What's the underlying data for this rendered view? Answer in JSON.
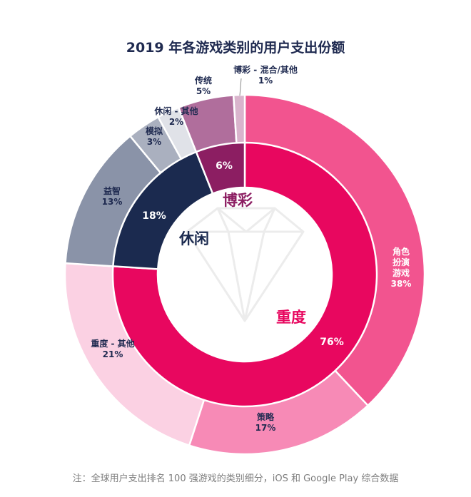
{
  "chart_data": {
    "type": "pie",
    "variant": "nested-donut",
    "title": "2019 年各游戏类别的用户支出份额",
    "footnote": "注：全球用户支出排名 100 强游戏的类别细分，iOS 和 Google Play 综合数据",
    "inner_ring": [
      {
        "name": "重度",
        "value": 76,
        "label": "76%",
        "color": "#e8075f"
      },
      {
        "name": "休闲",
        "value": 18,
        "label": "18%",
        "color": "#1b2a4f"
      },
      {
        "name": "博彩",
        "value": 6,
        "label": "6%",
        "color": "#8c1e62"
      }
    ],
    "outer_ring": [
      {
        "name": "角色扮演游戏",
        "lines": [
          "角色",
          "扮演",
          "游戏"
        ],
        "value": 38,
        "label": "38%",
        "color": "#f2548f"
      },
      {
        "name": "策略",
        "lines": [
          "策略"
        ],
        "value": 17,
        "label": "17%",
        "color": "#f78ab6"
      },
      {
        "name": "重度 - 其他",
        "lines": [
          "重度 - 其他"
        ],
        "value": 21,
        "label": "21%",
        "color": "#fbd1e3"
      },
      {
        "name": "益智",
        "lines": [
          "益智"
        ],
        "value": 13,
        "label": "13%",
        "color": "#8a93a8"
      },
      {
        "name": "模拟",
        "lines": [
          "模拟"
        ],
        "value": 3,
        "label": "3%",
        "color": "#aab0bf"
      },
      {
        "name": "休闲 - 其他",
        "lines": [
          "休闲 - 其他"
        ],
        "value": 2,
        "label": "2%",
        "color": "#e0e2e8"
      },
      {
        "name": "传统",
        "lines": [
          "传统"
        ],
        "value": 5,
        "label": "5%",
        "color": "#b06e9c"
      },
      {
        "name": "博彩 - 混合/其他",
        "lines": [
          "博彩 - 混合/其他"
        ],
        "value": 1,
        "label": "1%",
        "color": "#d9b4cc"
      }
    ]
  }
}
